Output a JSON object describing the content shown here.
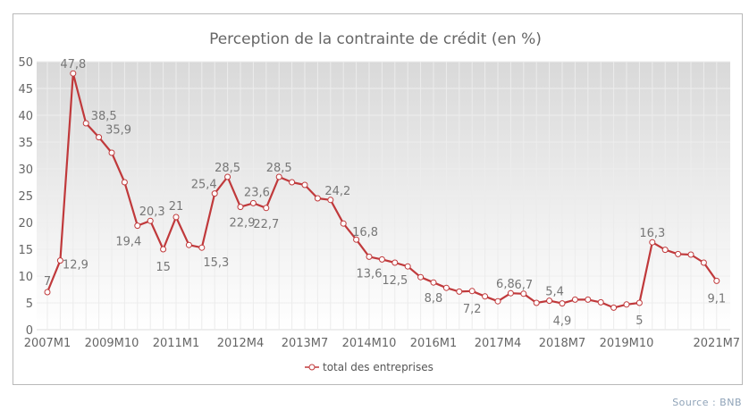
{
  "chart_data": {
    "type": "line",
    "title": "Perception de la contrainte de crédit (en %)",
    "xlabel": "",
    "ylabel": "",
    "ylim": [
      0,
      50
    ],
    "yticks": [
      0,
      5,
      10,
      15,
      20,
      25,
      30,
      35,
      40,
      45,
      50
    ],
    "grid": true,
    "legend_position": "bottom",
    "categories": [
      "2007M1",
      "",
      "",
      "",
      "",
      "2009M10",
      "",
      "",
      "",
      "",
      "2011M1",
      "",
      "",
      "",
      "",
      "2012M4",
      "",
      "",
      "",
      "",
      "2013M7",
      "",
      "",
      "",
      "",
      "2014M10",
      "",
      "",
      "",
      "",
      "2016M1",
      "",
      "",
      "",
      "",
      "2017M4",
      "",
      "",
      "",
      "",
      "2018M7",
      "",
      "",
      "",
      "",
      "2019M10",
      "",
      "",
      "",
      "",
      "",
      "",
      "2021M7"
    ],
    "series": [
      {
        "name": "total des entreprises",
        "color": "#c0393b",
        "values": [
          7,
          12.9,
          47.8,
          38.5,
          35.9,
          33,
          27.5,
          19.4,
          20.3,
          15,
          21,
          15.8,
          15.3,
          25.4,
          28.5,
          22.9,
          23.6,
          22.7,
          28.5,
          27.5,
          27,
          24.5,
          24.2,
          19.8,
          16.8,
          13.6,
          13.1,
          12.5,
          11.8,
          9.8,
          8.8,
          7.8,
          7.1,
          7.2,
          6.2,
          5.3,
          6.8,
          6.7,
          5.0,
          5.4,
          4.9,
          5.6,
          5.6,
          5.1,
          4.1,
          4.7,
          5,
          16.3,
          14.9,
          14.1,
          14.0,
          12.5,
          9.1
        ],
        "data_labels": {
          "0": "7",
          "1": "12,9",
          "2": "47,8",
          "3": "38,5",
          "4": "35,9",
          "7": "19,4",
          "8": "20,3",
          "9": "15",
          "10": "21",
          "12": "15,3",
          "13": "25,4",
          "14": "28,5",
          "15": "22,9",
          "16": "23,6",
          "17": "22,7",
          "18": "28,5",
          "22": "24,2",
          "24": "16,8",
          "25": "13,6",
          "27": "12,5",
          "30": "8,8",
          "33": "7,2",
          "36": "6,8",
          "37": "6,7",
          "39": "5,4",
          "40": "4,9",
          "46": "5",
          "47": "16,3",
          "52": "9,1"
        }
      }
    ]
  },
  "source": "Source : BNB"
}
